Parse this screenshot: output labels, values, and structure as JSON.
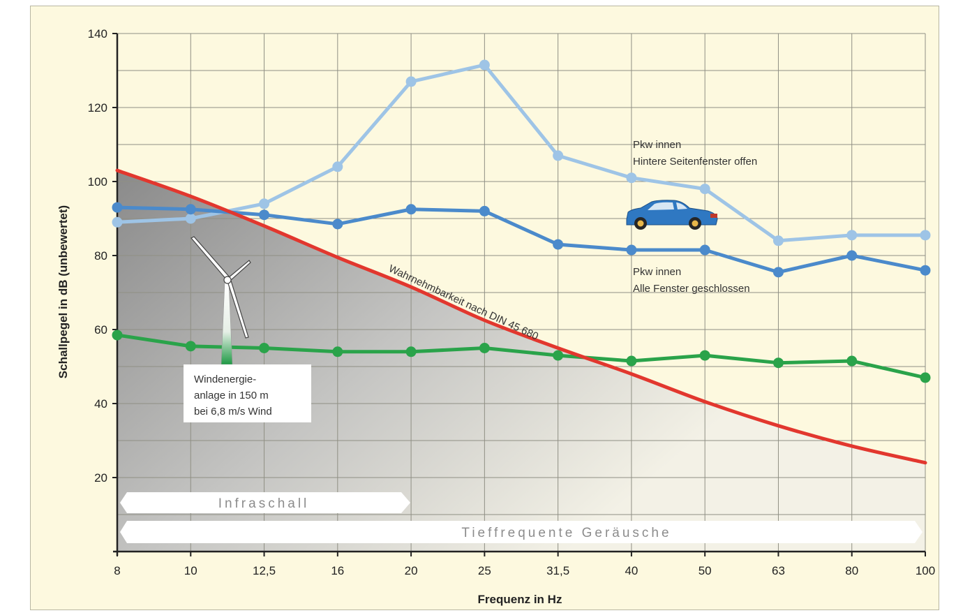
{
  "chart_data": {
    "type": "line",
    "categories": [
      "8",
      "10",
      "12,5",
      "16",
      "20",
      "25",
      "31,5",
      "40",
      "50",
      "63",
      "80",
      "100"
    ],
    "xlabel": "Frequenz in Hz",
    "ylabel": "Schallpegel in dB (unbewertet)",
    "ylim": [
      0,
      140
    ],
    "yticks": [
      20,
      40,
      60,
      80,
      100,
      120,
      140
    ],
    "grid": true,
    "series": [
      {
        "key": "pkw_offen",
        "color": "#9ec4e6",
        "values": [
          89,
          90,
          94,
          104,
          127,
          131.5,
          107,
          101,
          98,
          84,
          85.5,
          85.5
        ]
      },
      {
        "key": "pkw_geschlossen",
        "color": "#4b8acb",
        "values": [
          93,
          92.5,
          91,
          88.5,
          92.5,
          92,
          83,
          81.5,
          81.5,
          75.5,
          80,
          76
        ]
      },
      {
        "key": "wea",
        "color": "#2aa34a",
        "values": [
          58.5,
          55.5,
          55,
          54,
          54,
          55,
          53,
          51.5,
          53,
          51,
          51.5,
          47
        ]
      },
      {
        "key": "wahrnehmbarkeit",
        "color": "#e2372e",
        "values": [
          103,
          96,
          88,
          79.5,
          71.5,
          62.5,
          55,
          48,
          40.5,
          34,
          28.5,
          24
        ]
      }
    ],
    "annotations": {
      "pkw_offen_line1": "Pkw innen",
      "pkw_offen_line2": "Hintere Seitenfenster offen",
      "pkw_geschlossen_line1": "Pkw innen",
      "pkw_geschlossen_line2": "Alle Fenster geschlossen",
      "wea_line1": "Windenergie-",
      "wea_line2": "anlage in 150 m",
      "wea_line3": "bei 6,8 m/s Wind",
      "threshold": "Wahrnehmbarkeit nach DIN 45 680"
    },
    "bands": {
      "infraschall": "Infraschall",
      "tieffrequent": "Tieffrequente Geräusche"
    }
  },
  "icons": {
    "car": "car-icon",
    "turbine": "wind-turbine-icon"
  }
}
